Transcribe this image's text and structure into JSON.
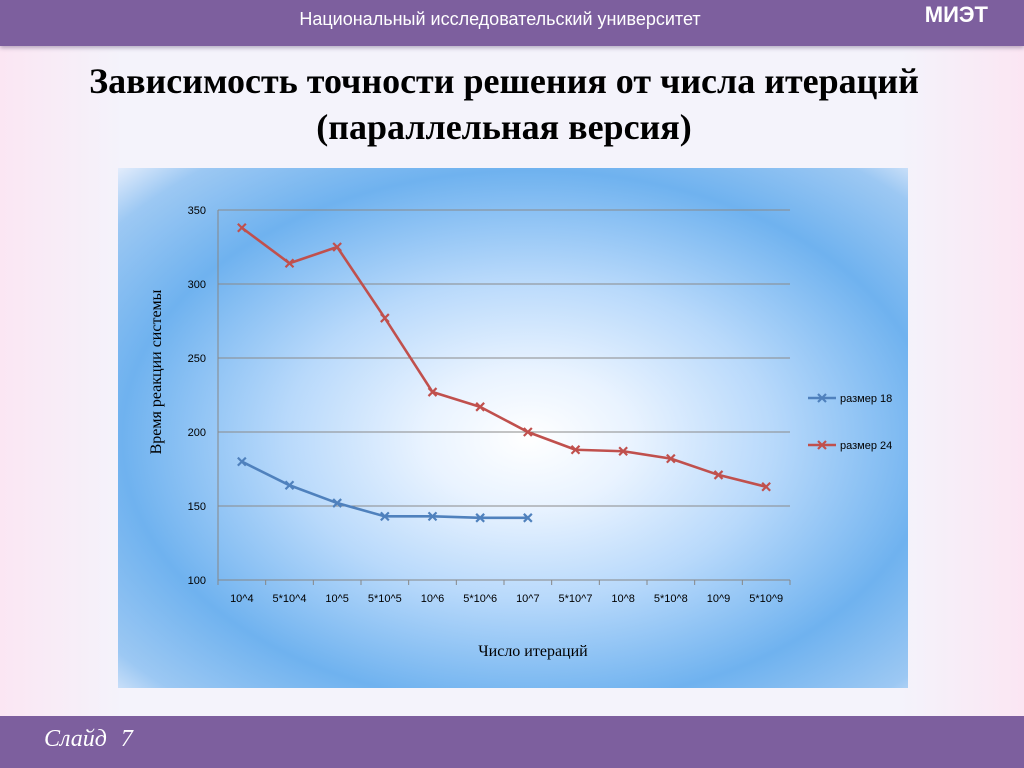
{
  "header": {
    "university": "Национальный исследовательский университет",
    "logo": "МИЭТ"
  },
  "title": {
    "line1": "Зависимость точности решения от числа итераций",
    "line2": "(параллельная версия)"
  },
  "footer": {
    "slide_label": "Слайд",
    "slide_number": "7"
  },
  "colors": {
    "series1": "#4f81bd",
    "series2": "#c0504d",
    "bar": "#7d5f9e"
  },
  "chart_data": {
    "type": "line",
    "xlabel": "Число итераций",
    "ylabel": "Время реакции системы",
    "ylim": [
      100,
      350
    ],
    "yticks": [
      100,
      150,
      200,
      250,
      300,
      350
    ],
    "grid": true,
    "legend_position": "right",
    "categories": [
      "10^4",
      "5*10^4",
      "10^5",
      "5*10^5",
      "10^6",
      "5*10^6",
      "10^7",
      "5*10^7",
      "10^8",
      "5*10^8",
      "10^9",
      "5*10^9"
    ],
    "series": [
      {
        "name": "размер 18",
        "values": [
          180,
          164,
          152,
          143,
          143,
          142,
          142,
          null,
          null,
          null,
          null,
          null
        ]
      },
      {
        "name": "размер 24",
        "values": [
          338,
          314,
          325,
          277,
          227,
          217,
          200,
          188,
          187,
          182,
          171,
          163
        ]
      }
    ]
  }
}
